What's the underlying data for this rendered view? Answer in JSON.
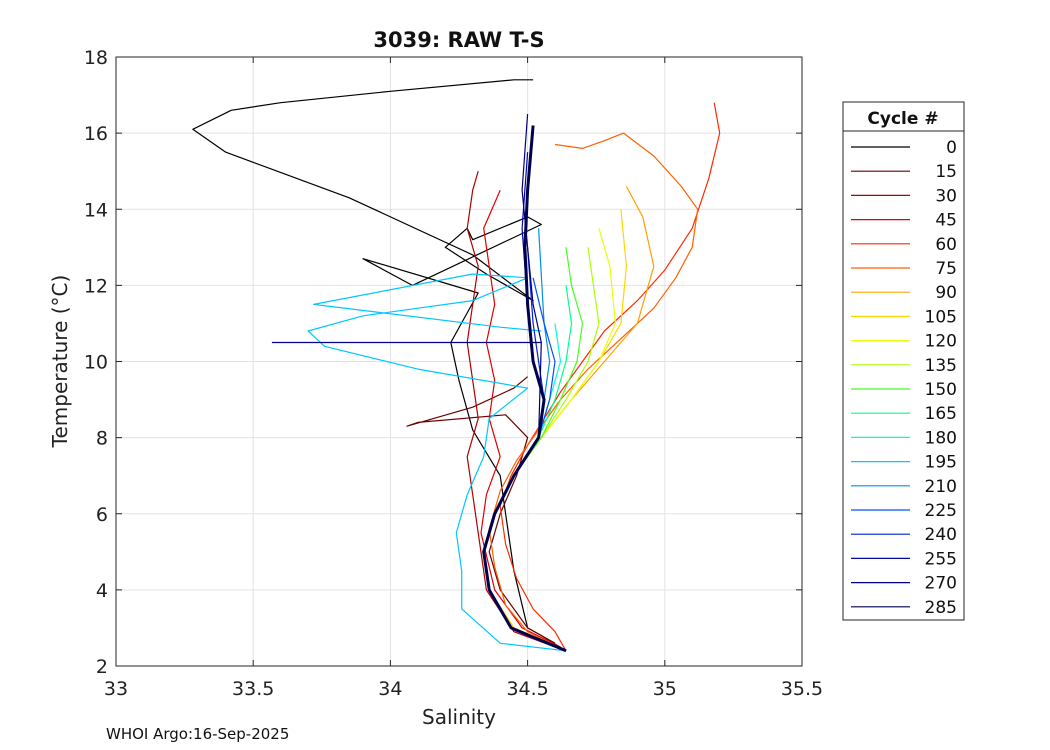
{
  "chart_data": {
    "type": "line",
    "title": "3039: RAW T-S",
    "xlabel": "Salinity",
    "ylabel": "Temperature (°C)",
    "xlim": [
      33,
      35.5
    ],
    "ylim": [
      2,
      18
    ],
    "xticks": [
      33,
      33.5,
      34,
      34.5,
      35,
      35.5
    ],
    "xtick_labels": [
      "33",
      "33.5",
      "34",
      "34.5",
      "35",
      "35.5"
    ],
    "yticks": [
      2,
      4,
      6,
      8,
      10,
      12,
      14,
      16,
      18
    ],
    "ytick_labels": [
      "2",
      "4",
      "6",
      "8",
      "10",
      "12",
      "14",
      "16",
      "18"
    ],
    "grid": true,
    "legend_title": "Cycle #",
    "legend_position": "right-outside",
    "series": [
      {
        "name": "0",
        "color": "#000000",
        "salinity": [
          34.64,
          34.55,
          34.5,
          34.45,
          34.42,
          34.4,
          34.3,
          34.25,
          34.22,
          34.32,
          33.9,
          34.08,
          34.55,
          34.5,
          34.3,
          34.28,
          34.2,
          34.35,
          34.52,
          34.3,
          33.85,
          33.4,
          33.28,
          33.42,
          33.6,
          34.0,
          34.45,
          34.52
        ],
        "temperature": [
          2.4,
          2.8,
          3.0,
          4.5,
          6.0,
          7.0,
          8.2,
          9.5,
          10.5,
          11.8,
          12.7,
          12.0,
          13.6,
          13.8,
          13.2,
          13.5,
          13.0,
          12.3,
          11.6,
          12.8,
          14.3,
          15.5,
          16.1,
          16.6,
          16.8,
          17.1,
          17.4,
          17.4
        ]
      },
      {
        "name": "15",
        "color": "#6b0000",
        "salinity": [
          34.6,
          34.5,
          34.4,
          34.36,
          34.4,
          34.46,
          34.5,
          34.42,
          34.1,
          34.06,
          34.3,
          34.45,
          34.5
        ],
        "temperature": [
          2.6,
          3.0,
          4.0,
          5.0,
          6.0,
          7.0,
          8.0,
          8.6,
          8.4,
          8.3,
          8.8,
          9.3,
          9.6
        ]
      },
      {
        "name": "30",
        "color": "#b00000",
        "salinity": [
          34.6,
          34.45,
          34.35,
          34.32,
          34.3,
          34.28,
          34.32,
          34.3,
          34.28,
          34.3,
          34.32,
          34.28,
          34.3,
          34.32
        ],
        "temperature": [
          2.5,
          2.9,
          4.0,
          5.5,
          6.5,
          7.5,
          8.5,
          9.5,
          10.5,
          11.5,
          12.5,
          13.5,
          14.5,
          15.0
        ]
      },
      {
        "name": "45",
        "color": "#e00000",
        "salinity": [
          34.62,
          34.48,
          34.38,
          34.33,
          34.35,
          34.4,
          34.36,
          34.38,
          34.35,
          34.38,
          34.36,
          34.34,
          34.4
        ],
        "temperature": [
          2.5,
          3.0,
          4.0,
          5.5,
          6.5,
          7.5,
          8.5,
          9.5,
          10.5,
          11.5,
          12.5,
          13.5,
          14.5
        ]
      },
      {
        "name": "60",
        "color": "#ff2a00",
        "salinity": [
          34.64,
          34.6,
          34.52,
          34.46,
          34.42,
          34.4,
          34.44,
          34.5,
          34.56,
          34.62,
          34.7,
          34.78,
          34.9,
          35.0,
          35.1,
          35.16,
          35.2,
          35.18
        ],
        "temperature": [
          2.4,
          2.9,
          3.5,
          4.3,
          5.2,
          6.2,
          7.0,
          7.8,
          8.5,
          9.2,
          10.0,
          10.8,
          11.6,
          12.4,
          13.5,
          14.8,
          16.0,
          16.8
        ]
      },
      {
        "name": "75",
        "color": "#ff6000",
        "salinity": [
          34.64,
          34.5,
          34.42,
          34.38,
          34.36,
          34.4,
          34.46,
          34.54,
          34.62,
          34.72,
          34.84,
          34.96,
          35.04,
          35.1,
          35.12,
          35.06,
          34.96,
          34.85,
          34.78,
          34.7,
          34.6
        ],
        "temperature": [
          2.4,
          2.9,
          3.6,
          4.6,
          5.6,
          6.6,
          7.4,
          8.2,
          9.0,
          9.8,
          10.6,
          11.4,
          12.2,
          13.0,
          14.0,
          14.6,
          15.4,
          16.0,
          15.8,
          15.6,
          15.7
        ]
      },
      {
        "name": "90",
        "color": "#ffa000",
        "salinity": [
          34.64,
          34.45,
          34.36,
          34.34,
          34.38,
          34.45,
          34.55,
          34.66,
          34.78,
          34.9,
          34.96,
          34.92,
          34.86
        ],
        "temperature": [
          2.4,
          3.0,
          4.0,
          5.0,
          6.0,
          7.0,
          8.0,
          9.0,
          10.0,
          11.0,
          12.5,
          13.8,
          14.6
        ]
      },
      {
        "name": "105",
        "color": "#ffd800",
        "salinity": [
          34.64,
          34.45,
          34.36,
          34.34,
          34.38,
          34.45,
          34.55,
          34.66,
          34.76,
          34.84,
          34.86,
          34.84
        ],
        "temperature": [
          2.4,
          3.0,
          4.0,
          5.0,
          6.0,
          7.0,
          8.0,
          9.0,
          10.0,
          11.0,
          12.5,
          14.0
        ]
      },
      {
        "name": "120",
        "color": "#e6ff00",
        "salinity": [
          34.64,
          34.44,
          34.36,
          34.34,
          34.38,
          34.45,
          34.55,
          34.66,
          34.76,
          34.82,
          34.8,
          34.76
        ],
        "temperature": [
          2.4,
          3.0,
          4.0,
          5.0,
          6.0,
          7.0,
          8.0,
          9.0,
          10.0,
          11.0,
          12.5,
          13.5
        ]
      },
      {
        "name": "135",
        "color": "#aaff00",
        "salinity": [
          34.64,
          34.44,
          34.36,
          34.34,
          34.38,
          34.45,
          34.55,
          34.64,
          34.72,
          34.76,
          34.72
        ],
        "temperature": [
          2.4,
          3.0,
          4.0,
          5.0,
          6.0,
          7.0,
          8.0,
          9.0,
          10.0,
          11.0,
          13.0
        ]
      },
      {
        "name": "150",
        "color": "#44ff22",
        "salinity": [
          34.64,
          34.44,
          34.36,
          34.34,
          34.38,
          34.45,
          34.55,
          34.62,
          34.68,
          34.7,
          34.66,
          34.64
        ],
        "temperature": [
          2.4,
          3.0,
          4.0,
          5.0,
          6.0,
          7.0,
          8.0,
          9.0,
          10.0,
          11.0,
          12.0,
          13.0
        ]
      },
      {
        "name": "165",
        "color": "#00ff88",
        "salinity": [
          34.64,
          34.44,
          34.36,
          34.34,
          34.38,
          34.45,
          34.54,
          34.6,
          34.64,
          34.66,
          34.64
        ],
        "temperature": [
          2.4,
          3.0,
          4.0,
          5.0,
          6.0,
          7.0,
          8.0,
          9.0,
          10.0,
          11.0,
          12.0
        ]
      },
      {
        "name": "180",
        "color": "#00ffd0",
        "salinity": [
          34.64,
          34.44,
          34.36,
          34.34,
          34.38,
          34.45,
          34.54,
          34.58,
          34.62,
          34.6
        ],
        "temperature": [
          2.4,
          3.0,
          4.0,
          5.0,
          6.0,
          7.0,
          8.0,
          9.0,
          10.0,
          11.0
        ]
      },
      {
        "name": "195",
        "color": "#00c8ff",
        "salinity": [
          34.64,
          34.4,
          34.26,
          34.26,
          34.24,
          34.28,
          34.34,
          34.36,
          34.5,
          34.1,
          33.76,
          33.7,
          33.9,
          34.3,
          34.5,
          34.3,
          33.72,
          34.4,
          34.55
        ],
        "temperature": [
          2.4,
          2.6,
          3.5,
          4.5,
          5.5,
          6.5,
          7.5,
          8.5,
          9.3,
          9.8,
          10.4,
          10.8,
          11.2,
          11.6,
          12.2,
          12.3,
          11.5,
          10.9,
          10.8
        ]
      },
      {
        "name": "210",
        "color": "#0090e0",
        "salinity": [
          34.64,
          34.44,
          34.36,
          34.34,
          34.38,
          34.45,
          34.54,
          34.56,
          34.58,
          34.56,
          34.54
        ],
        "temperature": [
          2.4,
          3.0,
          4.0,
          5.0,
          6.0,
          7.0,
          8.0,
          9.0,
          10.0,
          11.0,
          13.5
        ]
      },
      {
        "name": "225",
        "color": "#0050ff",
        "salinity": [
          34.64,
          34.44,
          34.36,
          34.34,
          34.38,
          34.45,
          34.54,
          34.58,
          34.6,
          34.56,
          34.52
        ],
        "temperature": [
          2.4,
          3.0,
          4.0,
          5.0,
          6.0,
          7.0,
          8.0,
          9.0,
          10.0,
          11.0,
          12.2
        ]
      },
      {
        "name": "240",
        "color": "#0020d0",
        "salinity": [
          34.64,
          34.44,
          34.36,
          34.34,
          34.38,
          34.45,
          34.54,
          34.56,
          34.54,
          34.52,
          34.5
        ],
        "temperature": [
          2.4,
          3.0,
          4.0,
          5.0,
          6.0,
          7.0,
          8.0,
          9.0,
          10.0,
          11.0,
          13.0
        ]
      },
      {
        "name": "255",
        "color": "#0008a0",
        "salinity": [
          34.64,
          34.44,
          34.36,
          34.34,
          34.38,
          34.45,
          34.54,
          34.56,
          34.52,
          34.5,
          34.48,
          34.5
        ],
        "temperature": [
          2.4,
          3.0,
          4.0,
          5.0,
          6.0,
          7.0,
          8.0,
          9.0,
          10.0,
          11.5,
          13.5,
          15.5
        ]
      },
      {
        "name": "270",
        "color": "#000080",
        "salinity": [
          34.64,
          34.44,
          34.36,
          34.34,
          34.38,
          34.45,
          34.54,
          34.55,
          33.57,
          34.55,
          34.52,
          34.5,
          34.48,
          34.5
        ],
        "temperature": [
          2.4,
          3.0,
          4.0,
          5.0,
          6.0,
          7.0,
          8.0,
          10.5,
          10.5,
          10.5,
          11.5,
          13.0,
          14.5,
          16.5
        ]
      },
      {
        "name": "285",
        "color": "#000050",
        "salinity": [
          34.64,
          34.44,
          34.36,
          34.34,
          34.38,
          34.45,
          34.54,
          34.56,
          34.52,
          34.5,
          34.49,
          34.5,
          34.52
        ],
        "temperature": [
          2.4,
          3.0,
          4.0,
          5.0,
          6.0,
          7.0,
          8.0,
          9.0,
          10.0,
          11.5,
          13.0,
          14.5,
          16.2
        ]
      }
    ]
  },
  "footnote": "WHOI Argo:16-Sep-2025"
}
